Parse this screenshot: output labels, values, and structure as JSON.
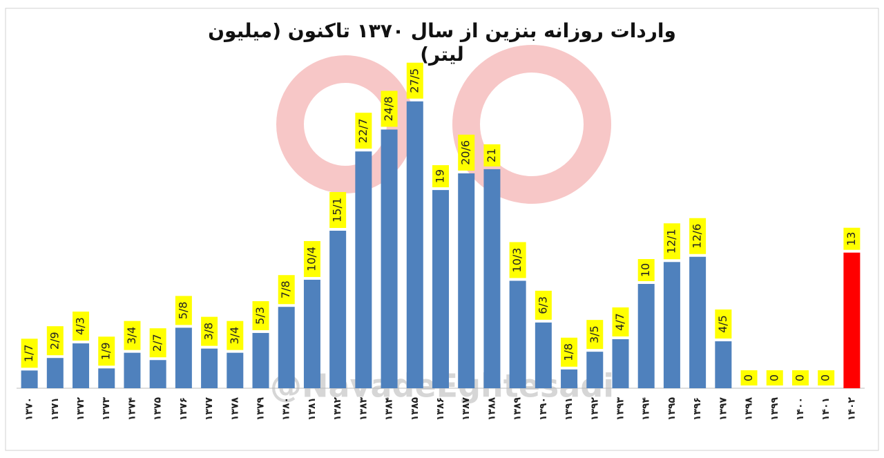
{
  "chart_data": {
    "type": "bar",
    "title": "واردات روزانه بنزین از سال ۱۳۷۰ تاکنون (میلیون لیتر)",
    "watermark": "@NavadeEghtesadi",
    "categories": [
      "۱۳۷۰",
      "۱۳۷۱",
      "۱۳۷۲",
      "۱۳۷۳",
      "۱۳۷۴",
      "۱۳۷۵",
      "۱۳۷۶",
      "۱۳۷۷",
      "۱۳۷۸",
      "۱۳۷۹",
      "۱۳۸۰",
      "۱۳۸۱",
      "۱۳۸۲",
      "۱۳۸۳",
      "۱۳۸۴",
      "۱۳۸۵",
      "۱۳۸۶",
      "۱۳۸۷",
      "۱۳۸۸",
      "۱۳۸۹",
      "۱۳۹۰",
      "۱۳۹۱",
      "۱۳۹۲",
      "۱۳۹۳",
      "۱۳۹۴",
      "۱۳۹۵",
      "۱۳۹۶",
      "۱۳۹۷",
      "۱۳۹۸",
      "۱۳۹۹",
      "۱۴۰۰",
      "۱۴۰۱",
      "۱۴۰۲"
    ],
    "values": [
      1.7,
      2.9,
      4.3,
      1.9,
      3.4,
      2.7,
      5.8,
      3.8,
      3.4,
      5.3,
      7.8,
      10.4,
      15.1,
      22.7,
      24.8,
      27.5,
      19,
      20.6,
      21,
      10.3,
      6.3,
      1.8,
      3.5,
      4.7,
      10,
      12.1,
      12.6,
      4.5,
      0,
      0,
      0,
      0,
      13
    ],
    "value_labels": [
      "1/7",
      "2/9",
      "4/3",
      "1/9",
      "3/4",
      "2/7",
      "5/8",
      "3/8",
      "3/4",
      "5/3",
      "7/8",
      "10/4",
      "15/1",
      "22/7",
      "24/8",
      "27/5",
      "19",
      "20/6",
      "21",
      "10/3",
      "6/3",
      "1/8",
      "3/5",
      "4/7",
      "10",
      "12/1",
      "12/6",
      "4/5",
      "0",
      "0",
      "0",
      "0",
      "13"
    ],
    "colors": [
      "#4f81bd",
      "#4f81bd",
      "#4f81bd",
      "#4f81bd",
      "#4f81bd",
      "#4f81bd",
      "#4f81bd",
      "#4f81bd",
      "#4f81bd",
      "#4f81bd",
      "#4f81bd",
      "#4f81bd",
      "#4f81bd",
      "#4f81bd",
      "#4f81bd",
      "#4f81bd",
      "#4f81bd",
      "#4f81bd",
      "#4f81bd",
      "#4f81bd",
      "#4f81bd",
      "#4f81bd",
      "#4f81bd",
      "#4f81bd",
      "#4f81bd",
      "#4f81bd",
      "#4f81bd",
      "#4f81bd",
      "#4f81bd",
      "#4f81bd",
      "#4f81bd",
      "#4f81bd",
      "#ff0000"
    ],
    "label_color": "#ffff00",
    "ylim": [
      0,
      30
    ]
  }
}
